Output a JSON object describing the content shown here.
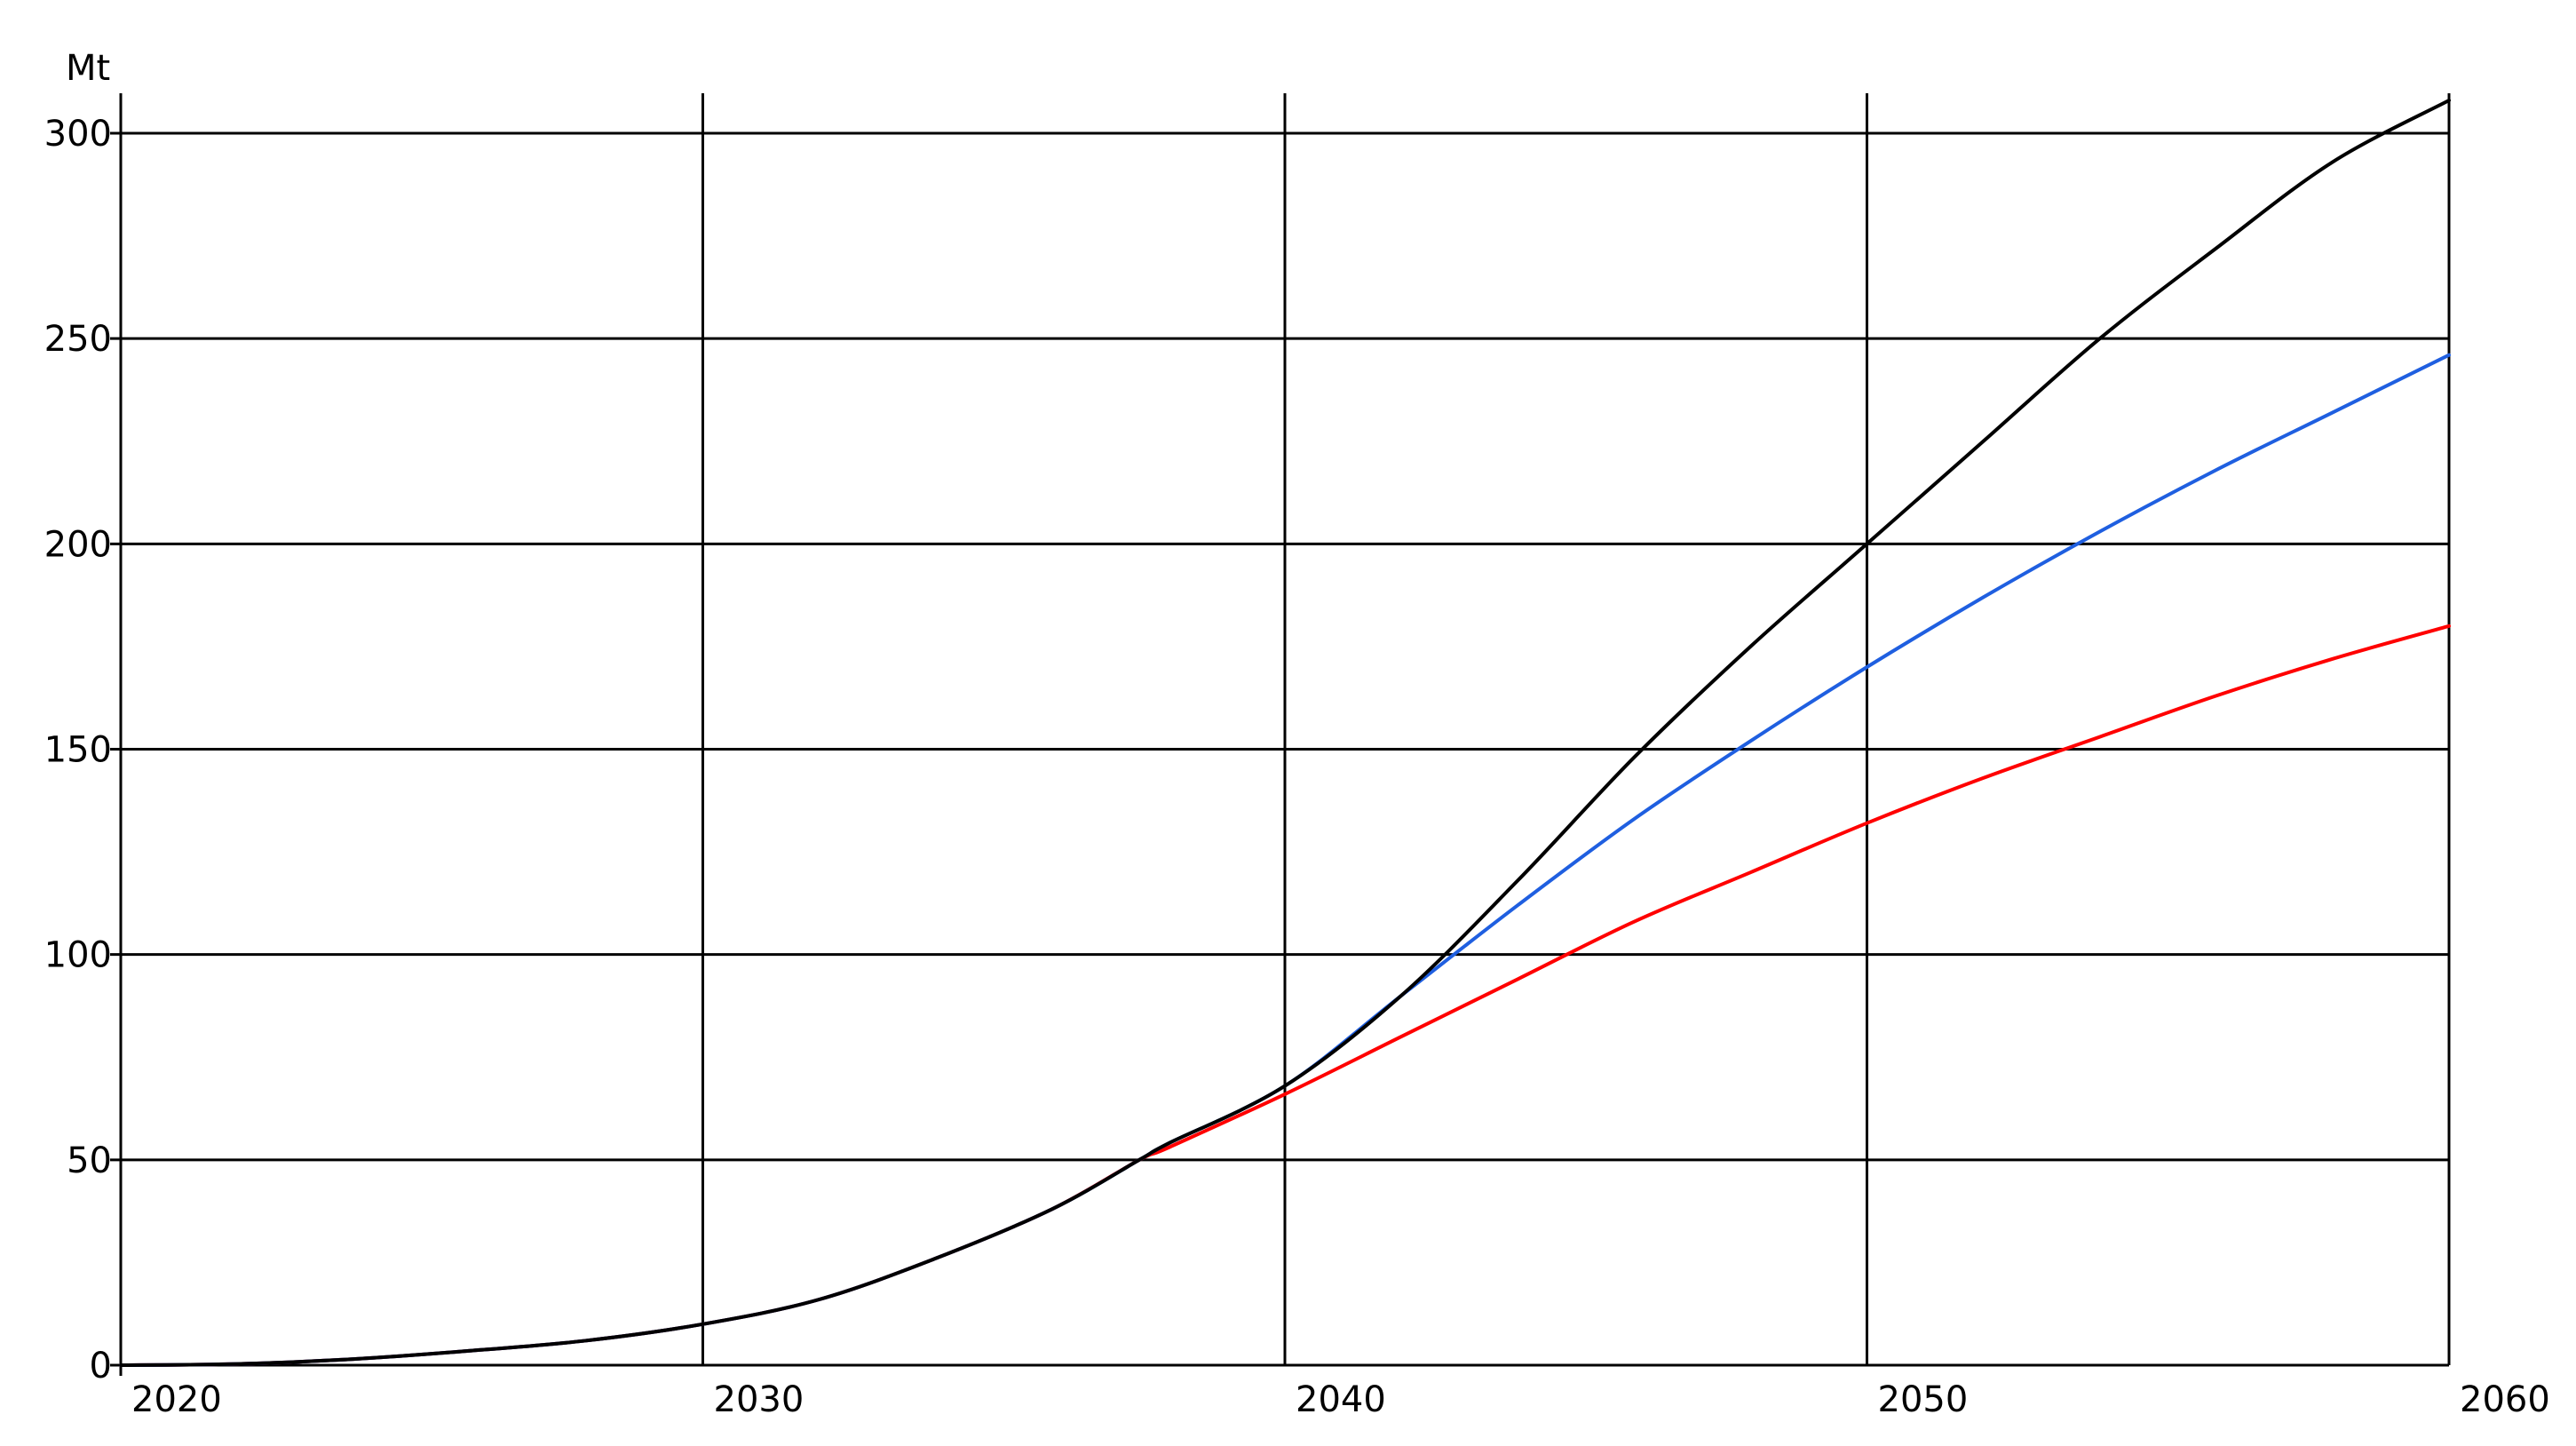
{
  "chart_data": {
    "type": "line",
    "title": "",
    "xlabel": "",
    "ylabel": "Mt",
    "xlim": [
      2020,
      2060
    ],
    "ylim": [
      0,
      300
    ],
    "x_ticks": [
      "2020",
      "2030",
      "2040",
      "2050",
      "2060"
    ],
    "y_ticks": [
      "0",
      "50",
      "100",
      "150",
      "200",
      "250",
      "300"
    ],
    "grid": true,
    "legend": "none",
    "x": [
      2020,
      2022,
      2024,
      2026,
      2028,
      2030,
      2032,
      2034,
      2036,
      2037.5,
      2038,
      2040,
      2042,
      2044,
      2046,
      2048,
      2050,
      2052,
      2054,
      2056,
      2058,
      2060
    ],
    "series": [
      {
        "color": "#000000",
        "values": [
          0,
          0.3,
          1.5,
          3.5,
          6,
          10,
          16,
          26,
          38,
          50,
          54,
          68,
          90,
          118,
          148,
          175,
          200,
          225,
          250,
          272,
          293,
          308
        ]
      },
      {
        "color": "#1f5fe0",
        "values": [
          0,
          0.3,
          1.5,
          3.5,
          6,
          10,
          16,
          26,
          38,
          50,
          54,
          68,
          90,
          112,
          133,
          152,
          170,
          187,
          203,
          218,
          232,
          246
        ]
      },
      {
        "color": "#ff0000",
        "values": [
          0,
          0.3,
          1.5,
          3.5,
          6,
          10,
          16,
          26,
          38,
          50,
          53,
          66,
          80,
          94,
          108,
          120,
          132,
          143,
          153,
          163,
          172,
          180
        ]
      }
    ]
  }
}
